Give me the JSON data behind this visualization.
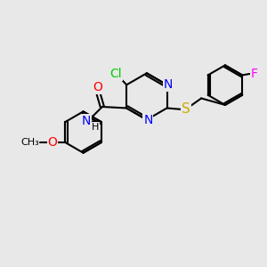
{
  "background_color": "#e8e8e8",
  "bond_color": "#000000",
  "bond_width": 1.5,
  "atom_colors": {
    "Cl": "#00cc00",
    "N": "#0000ff",
    "O": "#ff0000",
    "S": "#ccaa00",
    "F": "#ff00ff",
    "H": "#000000",
    "C": "#000000"
  },
  "font_size": 9,
  "fig_width": 3.0,
  "fig_height": 3.0,
  "dpi": 100
}
